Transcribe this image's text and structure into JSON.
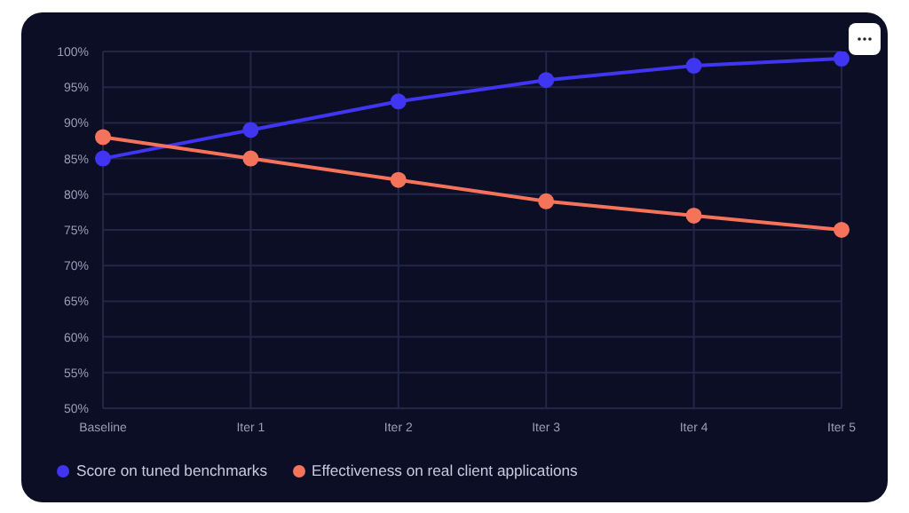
{
  "chart_data": {
    "type": "line",
    "categories": [
      "Baseline",
      "Iter 1",
      "Iter 2",
      "Iter 3",
      "Iter 4",
      "Iter 5"
    ],
    "series": [
      {
        "name": "Score on tuned benchmarks",
        "color": "#4035f0",
        "values": [
          85,
          89,
          93,
          96,
          98,
          99
        ]
      },
      {
        "name": "Effectiveness on real client applications",
        "color": "#f5735a",
        "values": [
          88,
          85,
          82,
          79,
          77,
          75
        ]
      }
    ],
    "ylim": [
      50,
      100
    ],
    "yticks": [
      {
        "value": 50,
        "label": "50%"
      },
      {
        "value": 55,
        "label": "55%"
      },
      {
        "value": 60,
        "label": "60%"
      },
      {
        "value": 65,
        "label": "65%"
      },
      {
        "value": 70,
        "label": "70%"
      },
      {
        "value": 75,
        "label": "75%"
      },
      {
        "value": 80,
        "label": "80%"
      },
      {
        "value": 85,
        "label": "85%"
      },
      {
        "value": 90,
        "label": "90%"
      },
      {
        "value": 95,
        "label": "95%"
      },
      {
        "value": 100,
        "label": "100%"
      }
    ],
    "grid": true,
    "legend": "bottom",
    "marker": "circle",
    "line_style": "solid"
  }
}
